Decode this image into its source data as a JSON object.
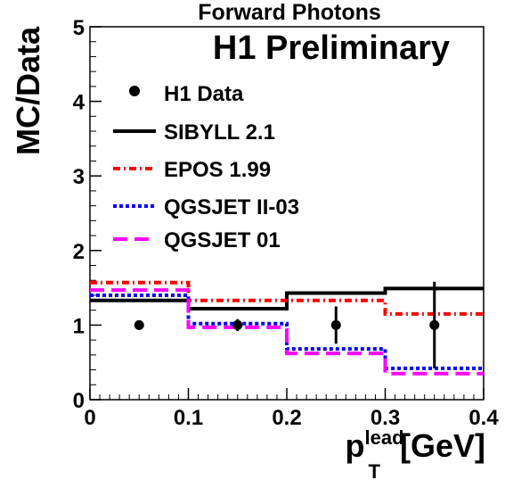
{
  "chart_data": {
    "type": "line",
    "title": "Forward Photons",
    "subtitle": "H1 Preliminary",
    "ylabel": "MC/Data",
    "xlabel": {
      "main": "p",
      "sup": "lead",
      "sub": "T",
      "unit": "[GeV]"
    },
    "xlim": [
      0,
      0.4
    ],
    "ylim": [
      0,
      5
    ],
    "xticks": [
      "0",
      "0.1",
      "0.2",
      "0.3",
      "0.4"
    ],
    "yticks": [
      "0",
      "1",
      "2",
      "3",
      "4",
      "5"
    ],
    "bin_edges": [
      0,
      0.1,
      0.2,
      0.3,
      0.4
    ],
    "grid": false,
    "legend_position": "top-left",
    "data_points": {
      "name": "H1 Data",
      "x": [
        0.05,
        0.15,
        0.25,
        0.35
      ],
      "y": [
        1,
        1,
        1,
        1
      ],
      "err": [
        0,
        0.08,
        0.25,
        0.58
      ],
      "color": "#000000"
    },
    "series": [
      {
        "name": "SIBYLL 2.1",
        "values": [
          1.33,
          1.22,
          1.43,
          1.49
        ],
        "color": "#000000",
        "style": "solid"
      },
      {
        "name": "EPOS 1.99",
        "values": [
          1.57,
          1.33,
          1.33,
          1.15
        ],
        "color": "#ff0000",
        "style": "dashdot"
      },
      {
        "name": "QGSJET II-03",
        "values": [
          1.4,
          1.02,
          0.68,
          0.42
        ],
        "color": "#0000ff",
        "style": "dotted"
      },
      {
        "name": "QGSJET 01",
        "values": [
          1.47,
          0.97,
          0.62,
          0.35
        ],
        "color": "#ff00ff",
        "style": "dashed"
      }
    ]
  }
}
